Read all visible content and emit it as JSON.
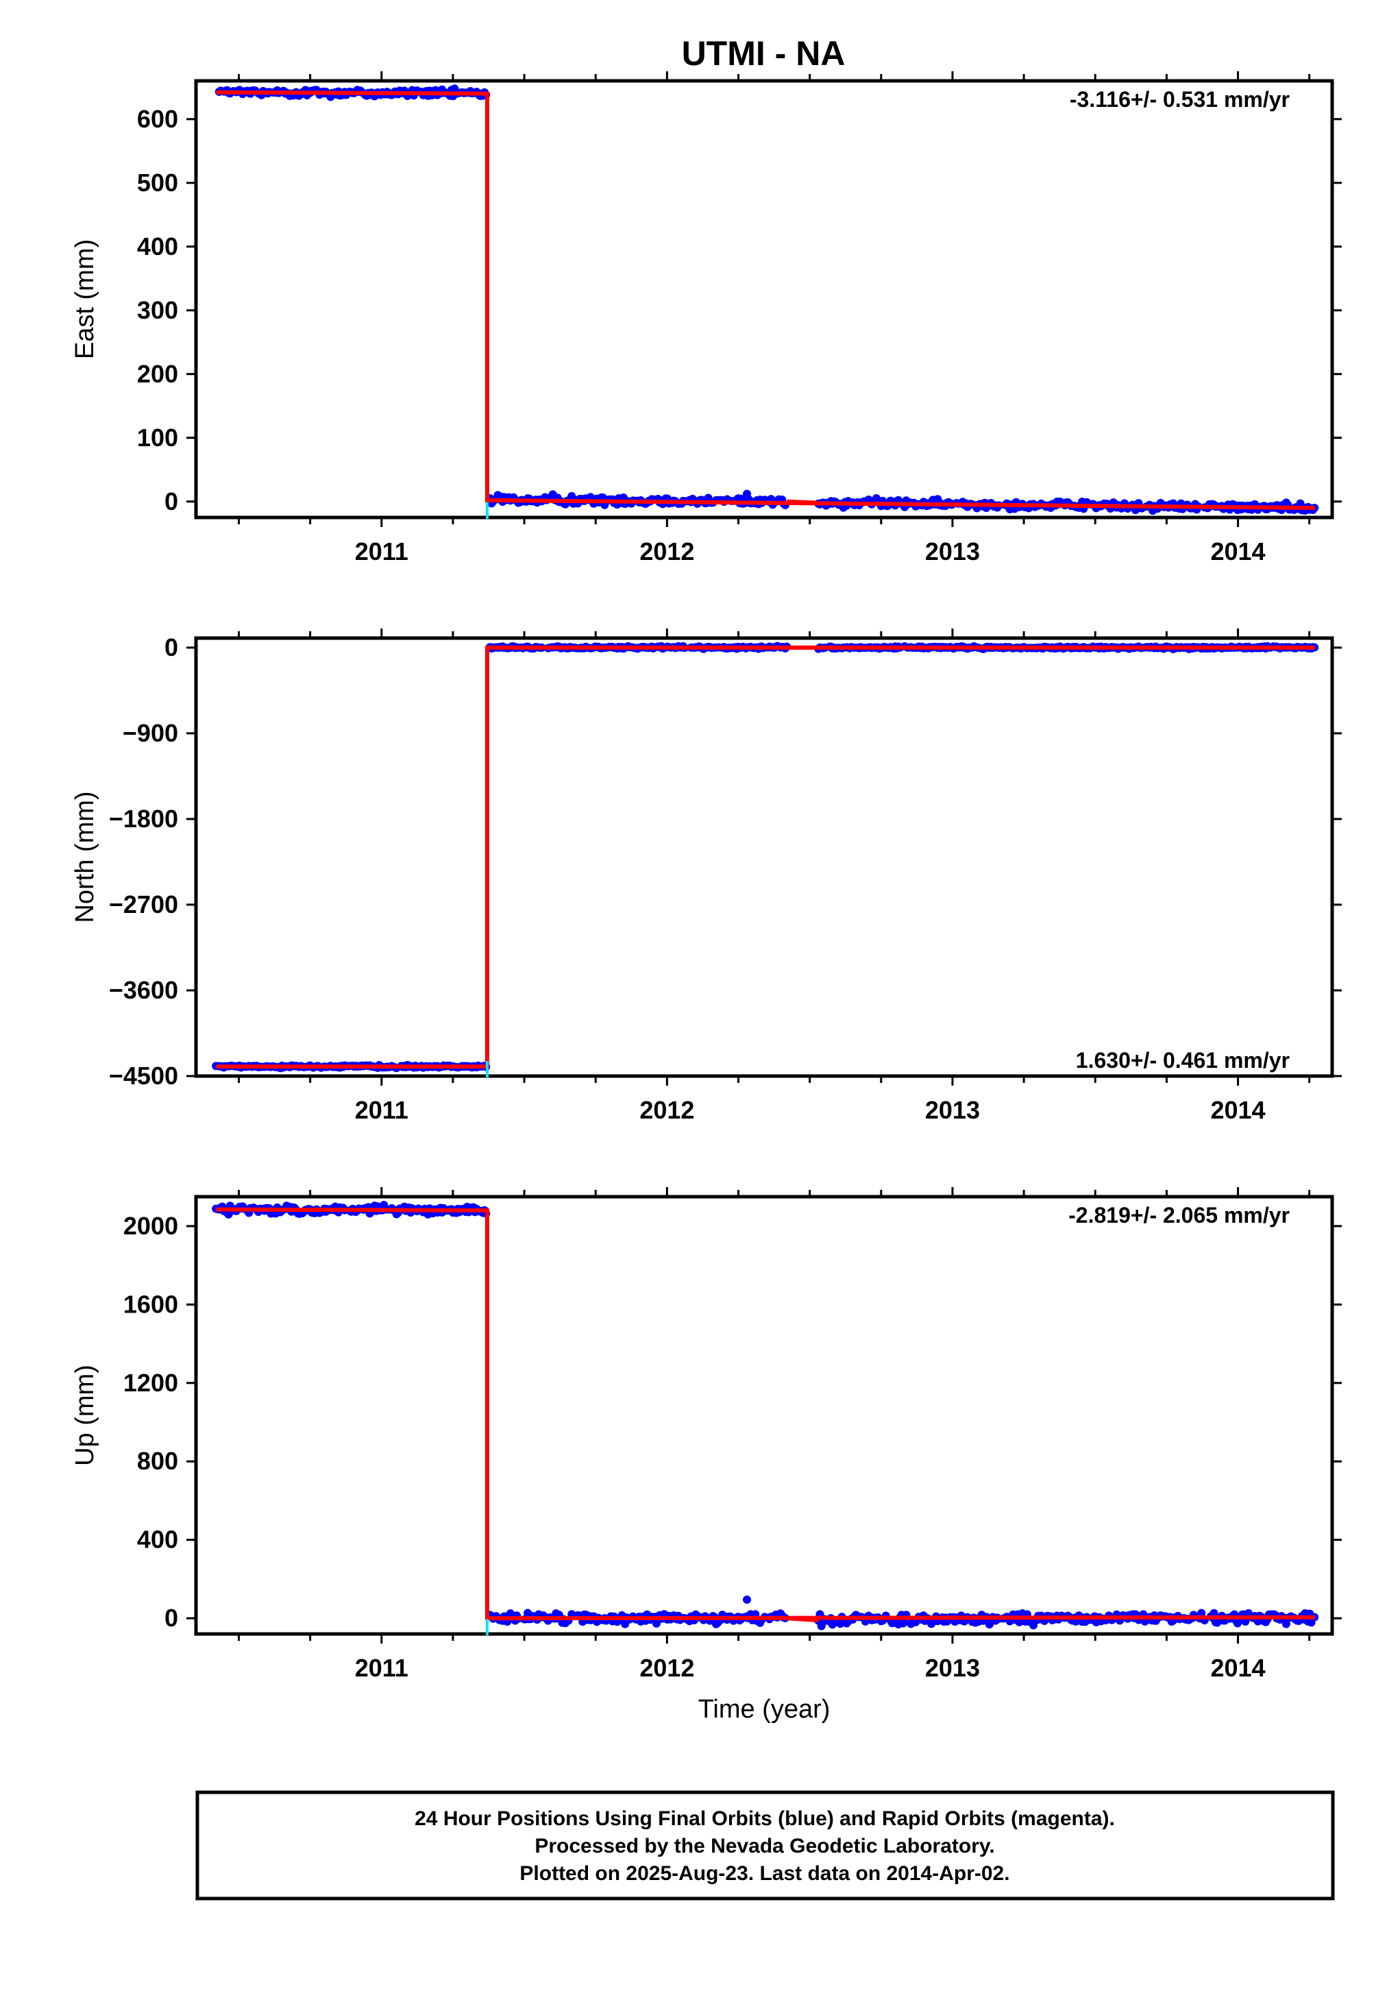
{
  "chart_data": [
    {
      "type": "scatter",
      "panel": "east",
      "title": "UTMI - NA",
      "xlabel": "",
      "ylabel": "East (mm)",
      "xlim": [
        2010.35,
        2014.33
      ],
      "ylim": [
        -25,
        660
      ],
      "yticks": [
        0,
        100,
        200,
        300,
        400,
        500,
        600
      ],
      "ytick_labels": [
        "0",
        "100",
        "200",
        "300",
        "400",
        "500",
        "600"
      ],
      "xticks": [
        2011,
        2012,
        2013,
        2014
      ],
      "xtick_labels": [
        "2011",
        "2012",
        "2013",
        "2014"
      ],
      "rate_label": "-3.116+/- 0.531 mm/yr",
      "offset_time": 2011.37,
      "outliers": [
        {
          "x": 2012.28,
          "y": 12
        }
      ],
      "series": [
        {
          "name": "Final Orbits",
          "color": "#0000ff",
          "segments": [
            {
              "x0": 2010.42,
              "x1": 2011.37,
              "y0": 642,
              "y1": 640,
              "noise": 3
            },
            {
              "x0": 2011.38,
              "x1": 2012.42,
              "y0": 3,
              "y1": 0,
              "noise": 3
            },
            {
              "x0": 2012.53,
              "x1": 2014.27,
              "y0": -2,
              "y1": -10,
              "noise": 3
            }
          ]
        },
        {
          "name": "Model",
          "color": "#ff0000",
          "x": [
            2010.42,
            2011.37,
            2011.37,
            2014.27
          ],
          "y": [
            642,
            640,
            2,
            -10
          ]
        }
      ],
      "grid": false
    },
    {
      "type": "scatter",
      "panel": "north",
      "xlabel": "",
      "ylabel": "North (mm)",
      "xlim": [
        2010.35,
        2014.33
      ],
      "ylim": [
        -4500,
        100
      ],
      "yticks": [
        -4500,
        -3600,
        -2700,
        -1800,
        -900,
        0
      ],
      "ytick_labels": [
        "−4500",
        "−3600",
        "−2700",
        "−1800",
        "−900",
        "0"
      ],
      "xticks": [
        2011,
        2012,
        2013,
        2014
      ],
      "xtick_labels": [
        "2011",
        "2012",
        "2013",
        "2014"
      ],
      "rate_label": "1.630+/- 0.461 mm/yr",
      "offset_time": 2011.37,
      "outliers": [],
      "series": [
        {
          "name": "Final Orbits",
          "color": "#0000ff",
          "segments": [
            {
              "x0": 2010.42,
              "x1": 2011.37,
              "y0": -4400,
              "y1": -4400,
              "noise": 6
            },
            {
              "x0": 2011.38,
              "x1": 2012.42,
              "y0": 0,
              "y1": 0,
              "noise": 6
            },
            {
              "x0": 2012.53,
              "x1": 2014.27,
              "y0": 0,
              "y1": 0,
              "noise": 6
            }
          ]
        },
        {
          "name": "Model",
          "color": "#ff0000",
          "x": [
            2010.42,
            2011.37,
            2011.37,
            2014.27
          ],
          "y": [
            -4400,
            -4400,
            0,
            0
          ]
        }
      ],
      "grid": false
    },
    {
      "type": "scatter",
      "panel": "up",
      "xlabel": "Time (year)",
      "ylabel": "Up (mm)",
      "xlim": [
        2010.35,
        2014.33
      ],
      "ylim": [
        -80,
        2150
      ],
      "yticks": [
        0,
        400,
        800,
        1200,
        1600,
        2000
      ],
      "ytick_labels": [
        "0",
        "400",
        "800",
        "1200",
        "1600",
        "2000"
      ],
      "xticks": [
        2011,
        2012,
        2013,
        2014
      ],
      "xtick_labels": [
        "2011",
        "2012",
        "2013",
        "2014"
      ],
      "rate_label": "-2.819+/- 2.065 mm/yr",
      "offset_time": 2011.37,
      "outliers": [
        {
          "x": 2012.28,
          "y": 95
        }
      ],
      "series": [
        {
          "name": "Final Orbits",
          "color": "#0000ff",
          "segments": [
            {
              "x0": 2010.42,
              "x1": 2011.37,
              "y0": 2085,
              "y1": 2080,
              "noise": 10
            },
            {
              "x0": 2011.38,
              "x1": 2012.42,
              "y0": 0,
              "y1": 0,
              "noise": 12
            },
            {
              "x0": 2012.53,
              "x1": 2014.27,
              "y0": -10,
              "y1": 5,
              "noise": 12
            }
          ]
        },
        {
          "name": "Model",
          "color": "#ff0000",
          "x": [
            2010.42,
            2011.37,
            2011.37,
            2014.27
          ],
          "y": [
            2085,
            2080,
            0,
            5
          ]
        }
      ],
      "grid": false
    }
  ],
  "footer": {
    "line1": "24 Hour Positions Using Final Orbits (blue) and Rapid Orbits (magenta).",
    "line2": "Processed by the Nevada Geodetic Laboratory.",
    "line3": "Plotted on 2025-Aug-23. Last data on 2014-Apr-02."
  }
}
